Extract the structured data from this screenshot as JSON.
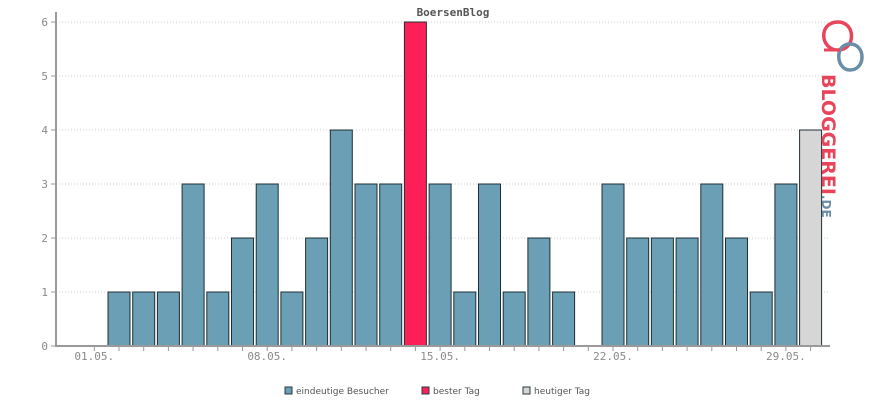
{
  "chart_data": {
    "type": "bar",
    "title": "BoersenBlog",
    "x_tick_labels": [
      "01.05.",
      "08.05.",
      "15.05.",
      "22.05.",
      "29.05."
    ],
    "days": [
      "01.05.",
      "02.05.",
      "03.05.",
      "04.05.",
      "05.05.",
      "06.05.",
      "07.05.",
      "08.05.",
      "09.05.",
      "10.05.",
      "11.05.",
      "12.05.",
      "13.05.",
      "14.05.",
      "15.05.",
      "16.05.",
      "17.05.",
      "18.05.",
      "19.05.",
      "20.05.",
      "21.05.",
      "22.05.",
      "23.05.",
      "24.05.",
      "25.05.",
      "26.05.",
      "27.05.",
      "28.05.",
      "29.05.",
      "30.05."
    ],
    "values": [
      0,
      1,
      1,
      1,
      3,
      1,
      2,
      3,
      1,
      2,
      4,
      3,
      3,
      6,
      3,
      1,
      3,
      1,
      2,
      1,
      0,
      3,
      2,
      2,
      2,
      3,
      2,
      1,
      3,
      4
    ],
    "kinds": [
      "normal",
      "normal",
      "normal",
      "normal",
      "normal",
      "normal",
      "normal",
      "normal",
      "normal",
      "normal",
      "normal",
      "normal",
      "normal",
      "best",
      "normal",
      "normal",
      "normal",
      "normal",
      "normal",
      "normal",
      "normal",
      "normal",
      "normal",
      "normal",
      "normal",
      "normal",
      "normal",
      "normal",
      "normal",
      "today"
    ],
    "ylim": [
      0,
      6
    ],
    "y_ticks": [
      "0",
      "1",
      "2",
      "3",
      "4",
      "5",
      "6"
    ],
    "grid": true,
    "legend_position": "bottom-center",
    "legend": [
      {
        "key": "normal",
        "label": "eindeutige Besucher",
        "color": "#6a9fb5"
      },
      {
        "key": "best",
        "label": "bester Tag",
        "color": "#ff1f58"
      },
      {
        "key": "today",
        "label": "heutiger Tag",
        "color": "#d6d6d6"
      }
    ]
  },
  "logo": {
    "word_main": "BLOGGEREI",
    "word_suffix": ".DE",
    "color_red": "#e8445a",
    "color_blue": "#6a8ea8"
  }
}
